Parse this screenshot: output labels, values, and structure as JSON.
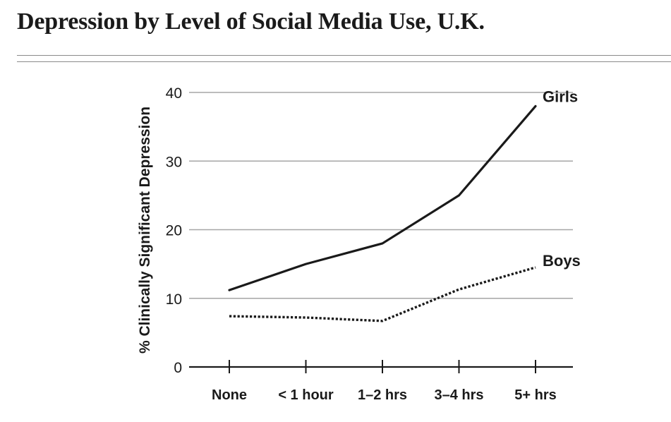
{
  "title": "Depression by Level of Social Media Use, U.K.",
  "colors": {
    "text": "#1a1a1a",
    "axis": "#1a1a1a",
    "grid": "#a6a6a6",
    "rule": "#8a8a8a"
  },
  "chart_data": {
    "type": "line",
    "title": "Depression by Level of Social Media Use, U.K.",
    "xlabel": "",
    "ylabel": "% Clinically Significant Depression",
    "categories": [
      "None",
      "< 1 hour",
      "1–2 hrs",
      "3–4 hrs",
      "5+ hrs"
    ],
    "yticks": [
      "0",
      "10",
      "20",
      "30",
      "40"
    ],
    "ylim": [
      0,
      40
    ],
    "grid": "horizontal",
    "legend": "end-of-line labels",
    "series": [
      {
        "name": "Girls",
        "values": [
          11.2,
          15.0,
          18.0,
          25.0,
          38.0
        ],
        "style": "solid"
      },
      {
        "name": "Boys",
        "values": [
          7.4,
          7.2,
          6.7,
          11.3,
          14.5
        ],
        "style": "dotted"
      }
    ]
  }
}
